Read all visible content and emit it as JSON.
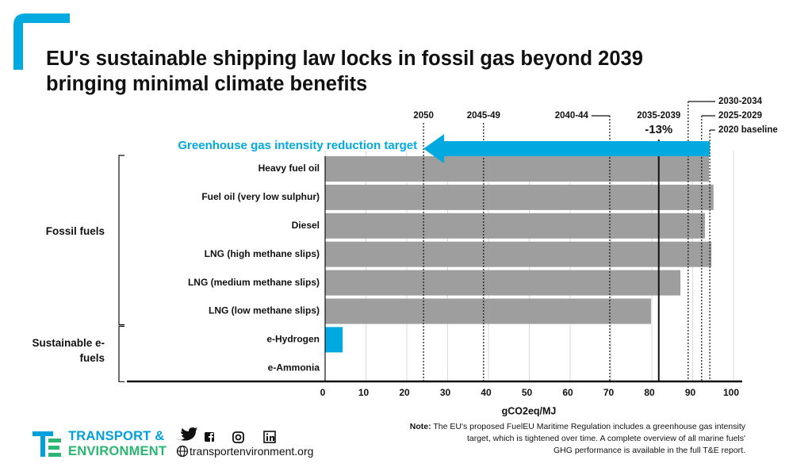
{
  "chart_data": {
    "type": "bar",
    "orientation": "horizontal",
    "title": [
      "EU's sustainable shipping law locks in fossil gas beyond 2039",
      "bringing minimal climate benefits"
    ],
    "groups": [
      {
        "name": "Fossil fuels",
        "color": "#9e9e9e",
        "categories": [
          "Heavy fuel oil",
          "Fuel oil (very low sulphur)",
          "Diesel",
          "LNG (high methane slips)",
          "LNG (medium methane slips)",
          "LNG (low methane slips)"
        ],
        "values": [
          94,
          95.1,
          93,
          94.6,
          87,
          79.8
        ]
      },
      {
        "name": "Sustainable e-fuels",
        "color": "#00a9e0",
        "categories": [
          "e-Hydrogen",
          "e-Ammonia"
        ],
        "values": [
          4.3,
          0
        ]
      }
    ],
    "xlabel": "gCO2eq/MJ",
    "xlim": [
      0,
      100
    ],
    "xticks": [
      0,
      10,
      20,
      30,
      40,
      50,
      60,
      70,
      80,
      90,
      100
    ],
    "grid": true,
    "reference_lines": [
      {
        "label": "2050",
        "value": 24.1,
        "line_style": "dotted"
      },
      {
        "label": "2045-49",
        "value": 38.8,
        "line_style": "dotted"
      },
      {
        "label": "2040-44",
        "value": 69.7,
        "line_style": "dotted"
      },
      {
        "label": "2035-2039",
        "value": 81.7,
        "line_style": "solid",
        "note": "-13%"
      },
      {
        "label": "2030-2034",
        "value": 88.9,
        "line_style": "dotted"
      },
      {
        "label": "2025-2029",
        "value": 92.2,
        "line_style": "dotted"
      },
      {
        "label": "2020 baseline",
        "value": 94.2,
        "line_style": "dotted"
      }
    ],
    "arrow": {
      "label": "Greenhouse gas intensity reduction target",
      "color": "#00a9e0"
    }
  },
  "footer": {
    "logo": [
      "TRANSPORT &",
      "ENVIRONMENT"
    ],
    "website": "transportenvironment.org",
    "note_label": "Note:",
    "note_lines": [
      "The EU's proposed FuelEU Maritime Regulation includes a greenhouse gas intensity",
      "target, which is tightened over time. A complete overview of all marine fuels'",
      "GHG performance is available in the full T&E report."
    ]
  }
}
